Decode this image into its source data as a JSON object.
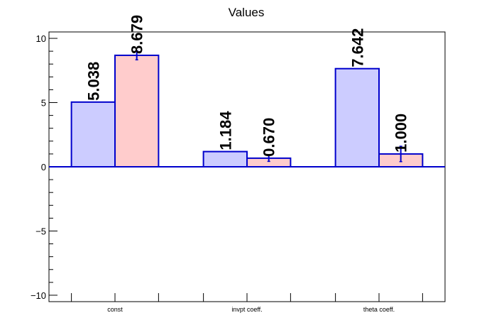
{
  "chart_data": {
    "type": "bar",
    "title": "Values",
    "categories": [
      "const",
      "invpt coeff.",
      "theta coeff."
    ],
    "series": [
      {
        "values": [
          5.038,
          1.184,
          7.642
        ],
        "labels": [
          "5.038",
          "1.184",
          "7.642"
        ],
        "errors": [
          0,
          0,
          0
        ],
        "fill": "#ccccff",
        "stroke": "#0000cc"
      },
      {
        "values": [
          8.679,
          0.67,
          1.0
        ],
        "labels": [
          "8.679",
          "0.670",
          "1.000"
        ],
        "errors": [
          0.35,
          0.25,
          0.6
        ],
        "fill": "#ffcccc",
        "stroke": "#0000cc"
      }
    ],
    "ylim": [
      -10.5,
      10.5
    ],
    "yticks": [
      -10,
      -5,
      0,
      5,
      10
    ],
    "ytick_labels": [
      "−10",
      "−5",
      "0",
      "5",
      "10"
    ],
    "grid": false,
    "zero_line_color": "#0000cc"
  }
}
